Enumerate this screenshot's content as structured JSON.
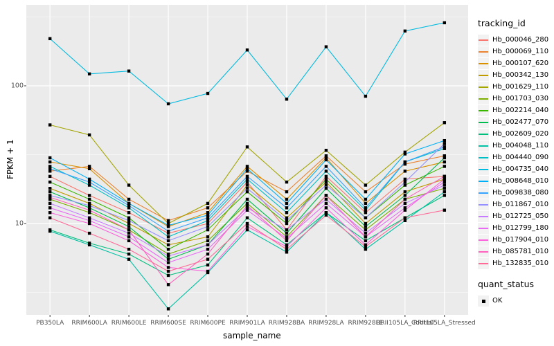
{
  "chart_data": {
    "type": "line",
    "title": "",
    "xlabel": "sample_name",
    "ylabel": "FPKM + 1",
    "y_scale": "log10",
    "y_ticks": [
      10,
      100
    ],
    "y_minor_ticks": [
      3.162,
      31.62,
      316.2
    ],
    "ylim": [
      2.2,
      392
    ],
    "grid": true,
    "legend_position": "right",
    "point_shape": "filled-square",
    "point_color": "#000000",
    "categories": [
      "PB350LA",
      "RRIM600LA",
      "RRIM600LE",
      "RRIM600SE",
      "RRIM600PE",
      "RRIM901LA",
      "RRIM928BA",
      "RRIM928LA",
      "RRIM928LE",
      "RRII105LA_Control",
      "RRII105LA_Stressed"
    ],
    "series": [
      {
        "name": "Hb_000046_280",
        "color": "#F8766D",
        "values": [
          22,
          16,
          12,
          8.5,
          10,
          20,
          9,
          22,
          12,
          21,
          22
        ]
      },
      {
        "name": "Hb_000069_110",
        "color": "#EA8331",
        "values": [
          24,
          26,
          15,
          10.5,
          13,
          24,
          17,
          31,
          17,
          27,
          31
        ]
      },
      {
        "name": "Hb_000107_620",
        "color": "#D89000",
        "values": [
          28,
          25,
          14,
          9.5,
          12,
          26,
          15,
          30,
          14,
          24,
          28
        ]
      },
      {
        "name": "Hb_000342_130",
        "color": "#C09B00",
        "values": [
          18,
          14,
          10,
          7,
          8,
          19,
          11,
          20,
          10,
          17,
          21
        ]
      },
      {
        "name": "Hb_001629_110",
        "color": "#A3A500",
        "values": [
          52,
          44,
          19,
          10,
          14,
          36,
          20,
          34,
          19,
          33,
          54
        ]
      },
      {
        "name": "Hb_001703_030",
        "color": "#7CAE00",
        "values": [
          15,
          12,
          9,
          6,
          7.5,
          14,
          8,
          16,
          9,
          15,
          18
        ]
      },
      {
        "name": "Hb_002214_040",
        "color": "#39B600",
        "values": [
          20,
          15,
          11,
          6.5,
          9,
          17,
          10,
          21,
          11,
          19,
          26
        ]
      },
      {
        "name": "Hb_002477_070",
        "color": "#00BB4E",
        "values": [
          17,
          13,
          9.5,
          5.5,
          7,
          15,
          8.5,
          18,
          9.5,
          16,
          30
        ]
      },
      {
        "name": "Hb_002609_020",
        "color": "#00BF7D",
        "values": [
          9,
          7.2,
          6,
          4.2,
          5,
          11,
          7,
          12,
          7.5,
          11,
          16
        ]
      },
      {
        "name": "Hb_004048_110",
        "color": "#00C1A3",
        "values": [
          8.8,
          7,
          5.5,
          2.4,
          4.4,
          9,
          6.2,
          12,
          6.5,
          10.5,
          17
        ]
      },
      {
        "name": "Hb_004440_090",
        "color": "#00BFC4",
        "values": [
          26,
          19,
          13,
          8,
          10.5,
          21,
          12,
          24,
          12.5,
          28,
          35
        ]
      },
      {
        "name": "Hb_004735_040",
        "color": "#00BAE0",
        "values": [
          220,
          122,
          128,
          74,
          88,
          182,
          80,
          192,
          84,
          250,
          287
        ]
      },
      {
        "name": "Hb_008648_010",
        "color": "#00B0F6",
        "values": [
          30,
          21,
          14,
          9.7,
          11.5,
          25,
          14,
          29,
          15,
          32,
          40
        ]
      },
      {
        "name": "Hb_009838_080",
        "color": "#35A2FF",
        "values": [
          25,
          20,
          13.5,
          8.8,
          11,
          22,
          13,
          26,
          13,
          28,
          36
        ]
      },
      {
        "name": "Hb_011867_010",
        "color": "#9590FF",
        "values": [
          16,
          13.5,
          10.5,
          7.5,
          9.5,
          18,
          10.5,
          19,
          11,
          20,
          38
        ]
      },
      {
        "name": "Hb_012725_050",
        "color": "#C77CFF",
        "values": [
          14,
          11,
          8.5,
          5.8,
          7,
          13,
          9,
          15,
          8.5,
          14,
          19
        ]
      },
      {
        "name": "Hb_012799_180",
        "color": "#E76BF3",
        "values": [
          13,
          10.5,
          8,
          5.2,
          6.5,
          12.5,
          7.8,
          14,
          8,
          13,
          20
        ]
      },
      {
        "name": "Hb_017904_010",
        "color": "#FA62DB",
        "values": [
          12,
          10,
          7.5,
          4.8,
          4.5,
          9.5,
          6.8,
          13,
          7,
          12.5,
          21
        ]
      },
      {
        "name": "Hb_085781_010",
        "color": "#FF62BC",
        "values": [
          15.5,
          12.5,
          9,
          3.6,
          6,
          13.5,
          7.5,
          16,
          8,
          15,
          22
        ]
      },
      {
        "name": "Hb_132835_010",
        "color": "#FF6A98",
        "values": [
          11,
          8.5,
          6.5,
          4.5,
          5.5,
          10,
          6.5,
          11.5,
          6.8,
          11,
          12.5
        ]
      }
    ]
  },
  "legend": {
    "tracking_title": "tracking_id",
    "quant_title": "quant_status",
    "quant_items": [
      "OK"
    ]
  },
  "colors": {
    "plot_bg": "#EBEBEB",
    "grid_major": "#FFFFFF",
    "grid_minor": "#FFFFFF",
    "tick": "#333333",
    "tick_label": "#4D4D4D"
  }
}
